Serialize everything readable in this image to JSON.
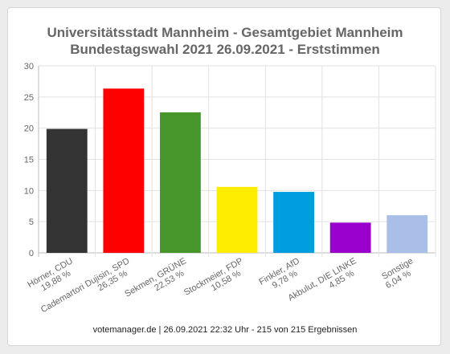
{
  "chart_data": {
    "type": "bar",
    "title_lines": [
      "Universitätsstadt Mannheim - Gesamtgebiet Mannheim",
      "Bundestagswahl 2021 26.09.2021  - Erststimmen"
    ],
    "categories": [
      [
        "Hörner, CDU",
        "19,88 %"
      ],
      [
        "Cademartori Dujisin, SPD",
        "26,35 %"
      ],
      [
        "Sekmen, GRÜNE",
        "22,53 %"
      ],
      [
        "Stockmeier, FDP",
        "10,58 %"
      ],
      [
        "Finkler, AfD",
        "9,78 %"
      ],
      [
        "Akbulut, DIE LINKE",
        "4,85 %"
      ],
      [
        "Sonstige",
        "6,04 %"
      ]
    ],
    "values": [
      19.88,
      26.35,
      22.53,
      10.58,
      9.78,
      4.85,
      6.04
    ],
    "colors": [
      "#333333",
      "#ff0000",
      "#46962b",
      "#ffed00",
      "#009ee0",
      "#9900cc",
      "#aabfe8"
    ],
    "ylim": [
      0,
      30
    ],
    "yticks": [
      0,
      5,
      10,
      15,
      20,
      25,
      30
    ],
    "grid": true,
    "legend": "none"
  },
  "footer": "votemanager.de | 26.09.2021 22:32 Uhr - 215 von 215 Ergebnissen"
}
